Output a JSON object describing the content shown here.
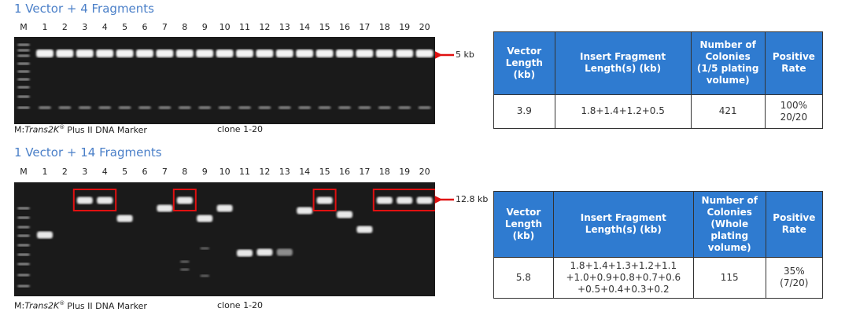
{
  "panels": [
    {
      "title": "1 Vector + 4 Fragments",
      "lanes": [
        "M",
        "1",
        "2",
        "3",
        "4",
        "5",
        "6",
        "7",
        "8",
        "9",
        "10",
        "11",
        "12",
        "13",
        "14",
        "15",
        "16",
        "17",
        "18",
        "19",
        "20"
      ],
      "size_label": "5 kb",
      "marker_prefix": "M:",
      "marker_name": "Trans2K",
      "marker_reg": "®",
      "marker_suffix": "Plus II DNA Marker",
      "clone_label": "clone 1-20",
      "table": {
        "headers": [
          "Vector Length (kb)",
          "Insert Fragment Length(s) (kb)",
          "Number of Colonies (1/5 plating volume)",
          "Positive Rate"
        ],
        "row": [
          [
            "3.9"
          ],
          [
            "1.8+1.4+1.2+0.5"
          ],
          [
            "421"
          ],
          [
            "100%",
            "20/20"
          ]
        ]
      }
    },
    {
      "title": "1 Vector + 14 Fragments",
      "lanes": [
        "M",
        "1",
        "2",
        "3",
        "4",
        "5",
        "6",
        "7",
        "8",
        "9",
        "10",
        "11",
        "12",
        "13",
        "14",
        "15",
        "16",
        "17",
        "18",
        "19",
        "20"
      ],
      "size_label": "12.8 kb",
      "marker_prefix": "M:",
      "marker_name": "Trans2K",
      "marker_reg": "®",
      "marker_suffix": "Plus II DNA Marker",
      "clone_label": "clone 1-20",
      "table": {
        "headers": [
          "Vector Length (kb)",
          "Insert Fragment Length(s) (kb)",
          "Number of Colonies (Whole plating volume)",
          "Positive Rate"
        ],
        "row": [
          [
            "5.8"
          ],
          [
            "1.8+1.4+1.3+1.2+1.1",
            "+1.0+0.9+0.8+0.7+0.6",
            "+0.5+0.4+0.3+0.2"
          ],
          [
            "115"
          ],
          [
            "35%",
            "(7/20)"
          ]
        ]
      }
    }
  ]
}
